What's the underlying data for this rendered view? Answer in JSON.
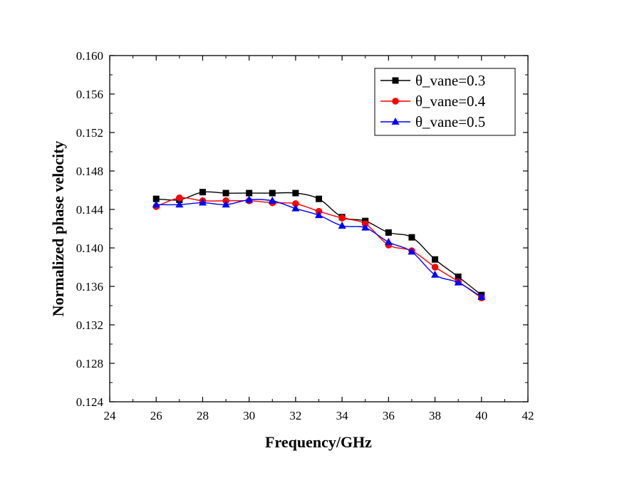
{
  "chart_data": {
    "type": "line",
    "title": "",
    "xlabel": "Frequency/GHz",
    "ylabel": "Normalized phase velocity",
    "xlim": [
      24,
      42
    ],
    "ylim": [
      0.124,
      0.16
    ],
    "x_ticks": [
      24,
      26,
      28,
      30,
      32,
      34,
      36,
      38,
      40,
      42
    ],
    "y_ticks": [
      0.124,
      0.128,
      0.132,
      0.136,
      0.14,
      0.144,
      0.148,
      0.152,
      0.156,
      0.16
    ],
    "x_tick_labels": [
      "24",
      "26",
      "28",
      "30",
      "32",
      "34",
      "36",
      "38",
      "40",
      "42"
    ],
    "y_tick_labels": [
      "0.124",
      "0.128",
      "0.132",
      "0.136",
      "0.140",
      "0.144",
      "0.148",
      "0.152",
      "0.156",
      "0.160"
    ],
    "grid": false,
    "legend_position": "top-right",
    "x": [
      26,
      27,
      28,
      29,
      30,
      31,
      32,
      33,
      34,
      35,
      36,
      37,
      38,
      39,
      40
    ],
    "series": [
      {
        "name": "θ_vane=0.3",
        "color": "#000000",
        "marker": "square",
        "values": [
          0.1451,
          0.145,
          0.1458,
          0.1457,
          0.1457,
          0.1457,
          0.1457,
          0.1451,
          0.1432,
          0.1428,
          0.1416,
          0.1411,
          0.1388,
          0.137,
          0.1351
        ]
      },
      {
        "name": "θ_vane=0.4",
        "color": "#ff0000",
        "marker": "circle",
        "values": [
          0.1443,
          0.1452,
          0.1449,
          0.1449,
          0.1449,
          0.1447,
          0.1446,
          0.1438,
          0.1431,
          0.1425,
          0.1403,
          0.1397,
          0.138,
          0.1365,
          0.1348
        ]
      },
      {
        "name": "θ_vane=0.5",
        "color": "#0000ff",
        "marker": "triangle",
        "values": [
          0.1445,
          0.1445,
          0.1447,
          0.1445,
          0.145,
          0.1449,
          0.1441,
          0.1434,
          0.1423,
          0.1421,
          0.1406,
          0.1396,
          0.1372,
          0.1364,
          0.1349
        ]
      }
    ]
  }
}
